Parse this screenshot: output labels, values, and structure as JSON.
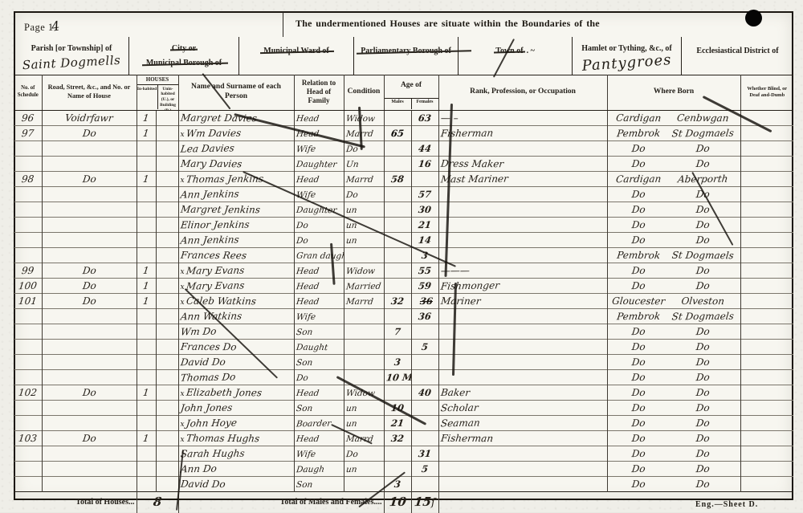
{
  "scan": {
    "page_label_printed": "Page 1",
    "page_label_handwritten": "4",
    "banner": "The undermentioned Houses are situate within the Boundaries of the",
    "footer": "Eng.—Sheet D."
  },
  "boundary_header": {
    "parish": {
      "label": "Parish [or Township] of",
      "value": "Saint Dogmells"
    },
    "city": {
      "line1": "City or",
      "line2": "Municipal Borough of"
    },
    "ward": {
      "label": "Municipal Ward of"
    },
    "parliamentary": {
      "label": "Parliamentary Borough of"
    },
    "town": {
      "label": "Town of",
      "suffix": ". ~"
    },
    "hamlet": {
      "label": "Hamlet or Tything, &c., of",
      "value": "Pantygroes"
    },
    "ecclesiastical": {
      "label": "Ecclesiastical District of"
    }
  },
  "table": {
    "columns": {
      "schedule": "No. of Schedule",
      "road": "Road, Street, &c., and No. or Name of House",
      "houses": "HOUSES",
      "inhabited": "In-habited",
      "uninhabited": "Unin-habited (U.), or Building (B.)",
      "name": "Name and Surname of each Person",
      "relation": "Relation to Head of Family",
      "condition": "Condition",
      "age": "Age of",
      "males": "Males",
      "females": "Females",
      "occupation": "Rank, Profession, or Occupation",
      "born": "Where Born",
      "infirm": "Whether Blind, or Deaf and-Dumb"
    },
    "rows": [
      {
        "s": "96",
        "road": "Voidrfawr",
        "inh": "1",
        "name": "Margret Davies",
        "rel": "Head",
        "cond": "Widow",
        "af": "63",
        "occ": "— –",
        "ba": "Cardigan",
        "bb": "Cenbwgan"
      },
      {
        "s": "97",
        "road": "Do",
        "inh": "1",
        "pre": "x",
        "name": "Wm Davies",
        "rel": "Head",
        "cond": "Marrd",
        "am": "65",
        "am_bold": true,
        "occ": "Fisherman",
        "ba": "Pembrok",
        "bb": "St Dogmaels"
      },
      {
        "name": "Lea Davies",
        "rel": "Wife",
        "cond": "Do",
        "af": "44",
        "ba": "Do",
        "bb": "Do"
      },
      {
        "name": "Mary Davies",
        "rel": "Daughter",
        "cond": "Un",
        "af": "16",
        "occ": "Dress Maker",
        "ba": "Do",
        "bb": "Do"
      },
      {
        "s": "98",
        "road": "Do",
        "inh": "1",
        "pre": "x",
        "name": "Thomas Jenkins",
        "rel": "Head",
        "cond": "Marrd",
        "am": "58",
        "occ": "Mast Mariner",
        "ba": "Cardigan",
        "bb": "Aberporth"
      },
      {
        "name": "Ann Jenkins",
        "rel": "Wife",
        "cond": "Do",
        "af": "57",
        "ba": "Do",
        "bb": "Do"
      },
      {
        "name": "Margret Jenkins",
        "rel": "Daughter",
        "cond": "un",
        "af": "30",
        "ba": "Do",
        "bb": "Do"
      },
      {
        "name": "Elinor Jenkins",
        "rel": "Do",
        "cond": "un",
        "af": "21",
        "ba": "Do",
        "bb": "Do"
      },
      {
        "name": "Ann Jenkins",
        "rel": "Do",
        "cond": "un",
        "af": "14",
        "ba": "Do",
        "bb": "Do"
      },
      {
        "name": "Frances Rees",
        "rel": "Gran daught",
        "af": "3",
        "ba": "Pembrok",
        "bb": "St Dogmaels"
      },
      {
        "s": "99",
        "road": "Do",
        "inh": "1",
        "pre": "x",
        "name": "Mary Evans",
        "rel": "Head",
        "cond": "Widow",
        "af": "55",
        "occ": "———",
        "ba": "Do",
        "bb": "Do"
      },
      {
        "s": "100",
        "road": "Do",
        "inh": "1",
        "pre": "x",
        "name": "Mary Evans",
        "rel": "Head",
        "cond": "Married",
        "af": "59",
        "occ": "Fishmonger",
        "ba": "Do",
        "bb": "Do"
      },
      {
        "s": "101",
        "road": "Do",
        "inh": "1",
        "pre": "x",
        "name": "Caleb Watkins",
        "rel": "Head",
        "cond": "Marrd",
        "am": "32",
        "af_struck": "36",
        "occ": "Mariner",
        "ba": "Gloucester",
        "bb": "Olveston"
      },
      {
        "name": "Ann Watkins",
        "rel": "Wife",
        "af": "36",
        "ba": "Pembrok",
        "bb": "St Dogmaels"
      },
      {
        "name": "Wm Do",
        "rel": "Son",
        "am": "7",
        "ba": "Do",
        "bb": "Do"
      },
      {
        "name": "Frances Do",
        "rel": "Daught",
        "af": "5",
        "ba": "Do",
        "bb": "Do"
      },
      {
        "name": "David Do",
        "rel": "Son",
        "am": "3",
        "ba": "Do",
        "bb": "Do"
      },
      {
        "name": "Thomas Do",
        "rel": "Do",
        "am": "10 Mo",
        "ba": "Do",
        "bb": "Do"
      },
      {
        "s": "102",
        "road": "Do",
        "inh": "1",
        "pre": "x",
        "name": "Elizabeth Jones",
        "rel": "Head",
        "cond": "Widow",
        "af": "40",
        "occ": "Baker",
        "ba": "Do",
        "bb": "Do"
      },
      {
        "name": "John Jones",
        "rel": "Son",
        "cond": "un",
        "am": "10",
        "occ": "Scholar",
        "ba": "Do",
        "bb": "Do"
      },
      {
        "pre": "x",
        "name": "John Hoye",
        "rel": "Boarder",
        "cond": "un",
        "am": "21",
        "occ": "Seaman",
        "ba": "Do",
        "bb": "Do"
      },
      {
        "s": "103",
        "road": "Do",
        "inh": "1",
        "pre": "x",
        "name": "Thomas Hughs",
        "rel": "Head",
        "cond": "Marrd",
        "am": "32",
        "occ": "Fisherman",
        "ba": "Do",
        "bb": "Do"
      },
      {
        "name": "Sarah Hughs",
        "rel": "Wife",
        "cond": "Do",
        "af": "31",
        "ba": "Do",
        "bb": "Do"
      },
      {
        "name": "Ann Do",
        "rel": "Daugh",
        "cond": "un",
        "af": "5",
        "ba": "Do",
        "bb": "Do"
      },
      {
        "name": "David Do",
        "rel": "Son",
        "am": "3",
        "ba": "Do",
        "bb": "Do"
      }
    ],
    "totals": {
      "houses_label": "Total of Houses...",
      "houses_value": "8",
      "males_females_label": "Total of Males and Females....",
      "males_value": "10",
      "females_value": "15",
      "flourish": "ſ"
    }
  }
}
